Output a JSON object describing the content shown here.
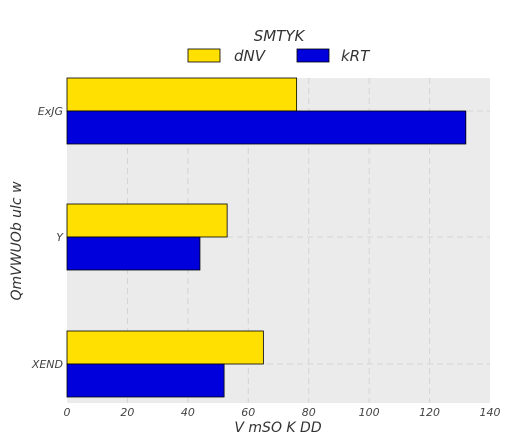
{
  "chart_data": {
    "type": "bar",
    "orientation": "horizontal",
    "title": "",
    "legend_title": "SMTYK",
    "legend_placement": "top-center",
    "xlabel": "V mSO  K  DD",
    "ylabel": "QmVWUOb ulc w",
    "xlim": [
      0,
      140
    ],
    "x_ticks": [
      0,
      20,
      40,
      60,
      80,
      100,
      120,
      140
    ],
    "grid": true,
    "categories": [
      "ExJG",
      "Y",
      "XEND"
    ],
    "series": [
      {
        "name": "dNV",
        "color": "#ffe000",
        "values": [
          76,
          53,
          65
        ]
      },
      {
        "name": "kRT",
        "color": "#0000dd",
        "values": [
          132,
          44,
          52
        ]
      }
    ],
    "background": "#ebebeb"
  }
}
